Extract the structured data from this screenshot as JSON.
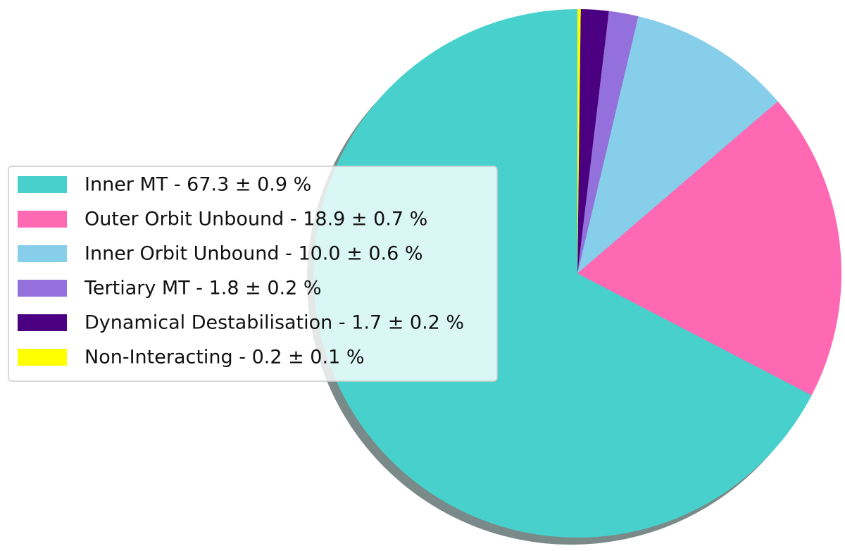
{
  "chart_data": {
    "type": "pie",
    "categories": [
      "Inner MT - 67.3 ± 0.9 %",
      "Outer Orbit Unbound - 18.9 ± 0.7 %",
      "Inner Orbit Unbound - 10.0 ± 0.6 %",
      "Tertiary MT - 1.8 ± 0.2 %",
      "Dynamical Destabilisation - 1.7 ± 0.2 %",
      "Non-Interacting - 0.2 ± 0.1 %"
    ],
    "values": [
      67.3,
      18.9,
      10.0,
      1.8,
      1.7,
      0.2
    ],
    "colors": [
      "#48d1cc",
      "#ff69b4",
      "#87ceeb",
      "#9370db",
      "#4b0082",
      "#ffff00"
    ],
    "shadow": true,
    "legend": "center left"
  }
}
